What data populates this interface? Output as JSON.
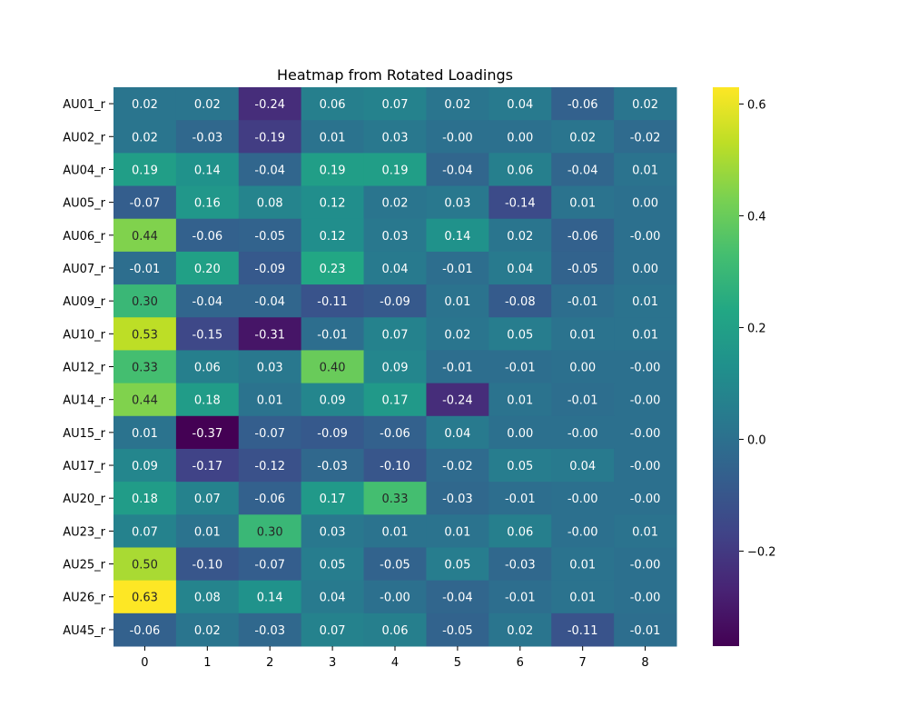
{
  "chart_data": {
    "type": "heatmap",
    "title": "Heatmap from Rotated Loadings",
    "xlabel": "",
    "ylabel": "",
    "colormap": "viridis",
    "columns": [
      "0",
      "1",
      "2",
      "3",
      "4",
      "5",
      "6",
      "7",
      "8"
    ],
    "rows": [
      "AU01_r",
      "AU02_r",
      "AU04_r",
      "AU05_r",
      "AU06_r",
      "AU07_r",
      "AU09_r",
      "AU10_r",
      "AU12_r",
      "AU14_r",
      "AU15_r",
      "AU17_r",
      "AU20_r",
      "AU23_r",
      "AU25_r",
      "AU26_r",
      "AU45_r"
    ],
    "values": [
      [
        0.02,
        0.02,
        -0.24,
        0.06,
        0.07,
        0.02,
        0.04,
        -0.06,
        0.02
      ],
      [
        0.02,
        -0.03,
        -0.19,
        0.01,
        0.03,
        -0.0,
        0.0,
        0.02,
        -0.02
      ],
      [
        0.19,
        0.14,
        -0.04,
        0.19,
        0.19,
        -0.04,
        0.06,
        -0.04,
        0.01
      ],
      [
        -0.07,
        0.16,
        0.08,
        0.12,
        0.02,
        0.03,
        -0.14,
        0.01,
        0.0
      ],
      [
        0.44,
        -0.06,
        -0.05,
        0.12,
        0.03,
        0.14,
        0.02,
        -0.06,
        -0.0
      ],
      [
        -0.01,
        0.2,
        -0.09,
        0.23,
        0.04,
        -0.01,
        0.04,
        -0.05,
        0.0
      ],
      [
        0.3,
        -0.04,
        -0.04,
        -0.11,
        -0.09,
        0.01,
        -0.08,
        -0.01,
        0.01
      ],
      [
        0.53,
        -0.15,
        -0.31,
        -0.01,
        0.07,
        0.02,
        0.05,
        0.01,
        0.01
      ],
      [
        0.33,
        0.06,
        0.03,
        0.4,
        0.09,
        -0.01,
        -0.01,
        0.0,
        -0.0
      ],
      [
        0.44,
        0.18,
        0.01,
        0.09,
        0.17,
        -0.24,
        0.01,
        -0.01,
        -0.0
      ],
      [
        0.01,
        -0.37,
        -0.07,
        -0.09,
        -0.06,
        0.04,
        0.0,
        -0.0,
        -0.0
      ],
      [
        0.09,
        -0.17,
        -0.12,
        -0.03,
        -0.1,
        -0.02,
        0.05,
        0.04,
        -0.0
      ],
      [
        0.18,
        0.07,
        -0.06,
        0.17,
        0.33,
        -0.03,
        -0.01,
        -0.0,
        -0.0
      ],
      [
        0.07,
        0.01,
        0.3,
        0.03,
        0.01,
        0.01,
        0.06,
        -0.0,
        0.01
      ],
      [
        0.5,
        -0.1,
        -0.07,
        0.05,
        -0.05,
        0.05,
        -0.03,
        0.01,
        -0.0
      ],
      [
        0.63,
        0.08,
        0.14,
        0.04,
        -0.0,
        -0.04,
        -0.01,
        0.01,
        -0.0
      ],
      [
        -0.06,
        0.02,
        -0.03,
        0.07,
        0.06,
        -0.05,
        0.02,
        -0.11,
        -0.01
      ]
    ],
    "value_labels": [
      [
        "0.02",
        "0.02",
        "-0.24",
        "0.06",
        "0.07",
        "0.02",
        "0.04",
        "-0.06",
        "0.02"
      ],
      [
        "0.02",
        "-0.03",
        "-0.19",
        "0.01",
        "0.03",
        "-0.00",
        "0.00",
        "0.02",
        "-0.02"
      ],
      [
        "0.19",
        "0.14",
        "-0.04",
        "0.19",
        "0.19",
        "-0.04",
        "0.06",
        "-0.04",
        "0.01"
      ],
      [
        "-0.07",
        "0.16",
        "0.08",
        "0.12",
        "0.02",
        "0.03",
        "-0.14",
        "0.01",
        "0.00"
      ],
      [
        "0.44",
        "-0.06",
        "-0.05",
        "0.12",
        "0.03",
        "0.14",
        "0.02",
        "-0.06",
        "-0.00"
      ],
      [
        "-0.01",
        "0.20",
        "-0.09",
        "0.23",
        "0.04",
        "-0.01",
        "0.04",
        "-0.05",
        "0.00"
      ],
      [
        "0.30",
        "-0.04",
        "-0.04",
        "-0.11",
        "-0.09",
        "0.01",
        "-0.08",
        "-0.01",
        "0.01"
      ],
      [
        "0.53",
        "-0.15",
        "-0.31",
        "-0.01",
        "0.07",
        "0.02",
        "0.05",
        "0.01",
        "0.01"
      ],
      [
        "0.33",
        "0.06",
        "0.03",
        "0.40",
        "0.09",
        "-0.01",
        "-0.01",
        "0.00",
        "-0.00"
      ],
      [
        "0.44",
        "0.18",
        "0.01",
        "0.09",
        "0.17",
        "-0.24",
        "0.01",
        "-0.01",
        "-0.00"
      ],
      [
        "0.01",
        "-0.37",
        "-0.07",
        "-0.09",
        "-0.06",
        "0.04",
        "0.00",
        "-0.00",
        "-0.00"
      ],
      [
        "0.09",
        "-0.17",
        "-0.12",
        "-0.03",
        "-0.10",
        "-0.02",
        "0.05",
        "0.04",
        "-0.00"
      ],
      [
        "0.18",
        "0.07",
        "-0.06",
        "0.17",
        "0.33",
        "-0.03",
        "-0.01",
        "-0.00",
        "-0.00"
      ],
      [
        "0.07",
        "0.01",
        "0.30",
        "0.03",
        "0.01",
        "0.01",
        "0.06",
        "-0.00",
        "0.01"
      ],
      [
        "0.50",
        "-0.10",
        "-0.07",
        "0.05",
        "-0.05",
        "0.05",
        "-0.03",
        "0.01",
        "-0.00"
      ],
      [
        "0.63",
        "0.08",
        "0.14",
        "0.04",
        "-0.00",
        "-0.04",
        "-0.01",
        "0.01",
        "-0.00"
      ],
      [
        "-0.06",
        "0.02",
        "-0.03",
        "0.07",
        "0.06",
        "-0.05",
        "0.02",
        "-0.11",
        "-0.01"
      ]
    ],
    "vmin": -0.37,
    "vmax": 0.63,
    "colorbar": {
      "ticks": [
        0.6,
        0.4,
        0.2,
        0.0,
        -0.2
      ],
      "tick_labels": [
        "0.6",
        "0.4",
        "0.2",
        "0.0",
        "−0.2"
      ]
    },
    "label_colors": {
      "dark_text": "#262626",
      "light_text": "#ffffff"
    }
  }
}
